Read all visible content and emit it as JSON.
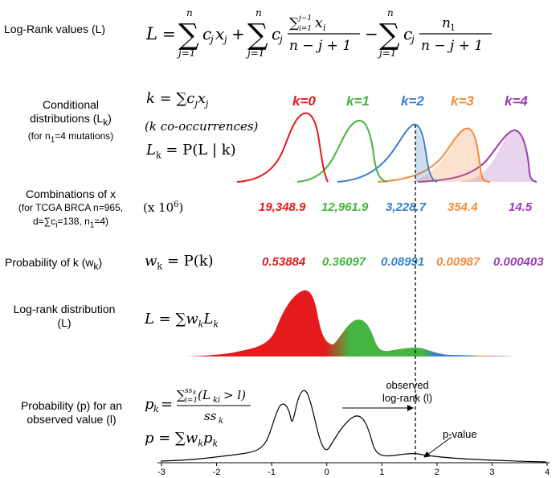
{
  "rows": {
    "logrank_label": "Log-Rank values (L)",
    "conditional_label_1": "Conditional",
    "conditional_label_2": "distributions (L",
    "conditional_label_2_sub": "k",
    "conditional_label_3": "(for n",
    "conditional_label_3_sub": "1",
    "conditional_label_3_rest": "=4 mutations)",
    "combinations_label_1": "Combinations of x",
    "combinations_label_2": "(for TCGA BRCA n=965,",
    "combinations_label_3": "d=∑c",
    "combinations_label_3_sub": "i",
    "combinations_label_3_rest": "=138, n",
    "combinations_label_3_sub2": "1",
    "combinations_label_3_end": "=4)",
    "probk_label": "Probability of k (w",
    "probk_label_sub": "k",
    "probk_label_end": ")",
    "logdist_label_1": "Log-rank distribution",
    "logdist_label_2": "(L)",
    "pvalue_label_1": "Probability (p) for an",
    "pvalue_label_2": "observed value (l)"
  },
  "formulas": {
    "main": "L = ∑ c_j x_j + ∑ c_j (∑ x_i)/(n − j + 1) − ∑ c_j n_1/(n − j + 1)",
    "k_def": "k = ∑c",
    "k_def_sub1": "j",
    "k_def_x": "x",
    "k_def_sub2": "j",
    "k_cooc": "(k co-occurrences)",
    "lk_def": "L",
    "lk_def_sub": "k",
    "lk_def_rest": " = P(L | k)",
    "scale": "(x 10",
    "scale_exp": "6",
    "scale_end": ")",
    "wk_def": "w",
    "wk_def_sub": "k",
    "wk_def_rest": " = P(k)",
    "L_def": "L = ∑w",
    "L_def_sub1": "k",
    "L_def_L": "L",
    "L_def_sub2": "k",
    "pk_def_lhs": "p",
    "pk_def_sub": "k",
    "pk_num": "∑(L",
    "pk_den": "ss",
    "p_def": "p = ∑w",
    "p_def_sub1": "k",
    "p_def_p": "p",
    "p_def_sub2": "k"
  },
  "k_series": [
    {
      "label": "k=0",
      "color": "#e41a1c",
      "combinations": "19,348.9",
      "probability": "0.53884"
    },
    {
      "label": "k=1",
      "color": "#44b540",
      "combinations": "12,961.9",
      "probability": "0.36097"
    },
    {
      "label": "k=2",
      "color": "#3a7dc9",
      "combinations": "3,228.7",
      "probability": "0.08991"
    },
    {
      "label": "k=3",
      "color": "#f58a3a",
      "combinations": "354.4",
      "probability": "0.00987"
    },
    {
      "label": "k=4",
      "color": "#9b3bb5",
      "combinations": "14.5",
      "probability": "0.000403"
    }
  ],
  "annotations": {
    "observed_1": "observed",
    "observed_2": "log-rank (l)",
    "pvalue": "p-value"
  },
  "axis": {
    "ticks": [
      "-3",
      "-2",
      "-1",
      "0",
      "1",
      "2",
      "3",
      "4"
    ]
  }
}
